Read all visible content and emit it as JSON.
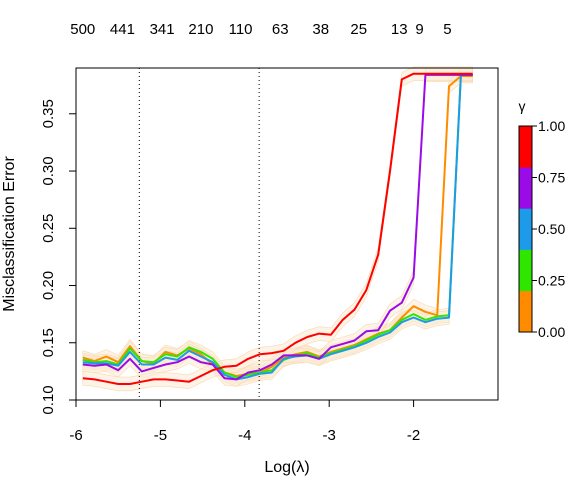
{
  "chart_data": {
    "type": "line",
    "xlabel": "Log(λ)",
    "ylabel": "Misclassification Error",
    "xlim": [
      -6.0,
      -1.0
    ],
    "ylim": [
      0.1,
      0.39
    ],
    "x_ticks": [
      -6,
      -5,
      -4,
      -3,
      -2
    ],
    "y_ticks": [
      0.1,
      0.15,
      0.2,
      0.25,
      0.3,
      0.35
    ],
    "y_tick_labels": [
      "0.10",
      "0.15",
      "0.20",
      "0.25",
      "0.30",
      "0.35"
    ],
    "top_axis": {
      "labels": [
        "500",
        "441",
        "341",
        "210",
        "110",
        "63",
        "38",
        "25",
        "13",
        "9",
        "5"
      ],
      "positions": [
        -5.92,
        -5.45,
        -4.98,
        -4.52,
        -4.05,
        -3.58,
        -3.1,
        -2.65,
        -2.17,
        -1.93,
        -1.6
      ]
    },
    "vlines": [
      -5.25,
      -3.83
    ],
    "legend": {
      "title": "γ",
      "tick_labels": [
        "0.00",
        "0.25",
        "0.50",
        "0.75",
        "1.00"
      ],
      "colors": [
        "#FF8C00",
        "#2EE600",
        "#1E9BE8",
        "#9B0BE8",
        "#FF0000"
      ]
    },
    "band_color": "#FBEBD4",
    "x": [
      -5.92,
      -5.78,
      -5.64,
      -5.5,
      -5.36,
      -5.22,
      -5.08,
      -4.94,
      -4.8,
      -4.66,
      -4.52,
      -4.38,
      -4.24,
      -4.1,
      -3.96,
      -3.82,
      -3.68,
      -3.54,
      -3.4,
      -3.26,
      -3.12,
      -2.98,
      -2.84,
      -2.7,
      -2.56,
      -2.42,
      -2.28,
      -2.14,
      -2.0,
      -1.86,
      -1.72,
      -1.58,
      -1.44,
      -1.3
    ],
    "series": [
      {
        "color": "#FF8C00",
        "values": [
          0.137,
          0.134,
          0.138,
          0.133,
          0.147,
          0.134,
          0.132,
          0.142,
          0.139,
          0.145,
          0.14,
          0.131,
          0.124,
          0.121,
          0.123,
          0.124,
          0.129,
          0.137,
          0.14,
          0.142,
          0.138,
          0.142,
          0.145,
          0.148,
          0.153,
          0.158,
          0.161,
          0.172,
          0.182,
          0.177,
          0.174,
          0.374,
          0.383,
          0.383
        ]
      },
      {
        "color": "#2EE600",
        "values": [
          0.135,
          0.133,
          0.134,
          0.131,
          0.145,
          0.134,
          0.133,
          0.14,
          0.138,
          0.146,
          0.142,
          0.136,
          0.124,
          0.12,
          0.122,
          0.124,
          0.126,
          0.135,
          0.139,
          0.141,
          0.137,
          0.141,
          0.144,
          0.147,
          0.152,
          0.157,
          0.161,
          0.17,
          0.175,
          0.17,
          0.173,
          0.174,
          0.384,
          0.384
        ]
      },
      {
        "color": "#1E9BE8",
        "values": [
          0.133,
          0.132,
          0.132,
          0.13,
          0.142,
          0.131,
          0.131,
          0.137,
          0.135,
          0.143,
          0.138,
          0.133,
          0.122,
          0.118,
          0.12,
          0.123,
          0.124,
          0.136,
          0.138,
          0.139,
          0.136,
          0.14,
          0.143,
          0.146,
          0.15,
          0.155,
          0.159,
          0.168,
          0.172,
          0.168,
          0.171,
          0.172,
          0.384,
          0.384
        ]
      },
      {
        "color": "#9B0BE8",
        "values": [
          0.131,
          0.13,
          0.131,
          0.126,
          0.136,
          0.125,
          0.128,
          0.131,
          0.133,
          0.138,
          0.133,
          0.131,
          0.119,
          0.118,
          0.124,
          0.126,
          0.131,
          0.139,
          0.139,
          0.139,
          0.136,
          0.146,
          0.149,
          0.152,
          0.16,
          0.161,
          0.178,
          0.185,
          0.207,
          0.384,
          0.384,
          0.384,
          0.384,
          0.384
        ]
      },
      {
        "color": "#FF0000",
        "values": [
          0.119,
          0.118,
          0.116,
          0.114,
          0.114,
          0.116,
          0.118,
          0.118,
          0.117,
          0.116,
          0.121,
          0.126,
          0.129,
          0.13,
          0.136,
          0.14,
          0.141,
          0.143,
          0.15,
          0.155,
          0.158,
          0.157,
          0.17,
          0.179,
          0.196,
          0.227,
          0.3,
          0.38,
          0.385,
          0.385,
          0.385,
          0.385,
          0.385,
          0.385
        ]
      }
    ]
  }
}
